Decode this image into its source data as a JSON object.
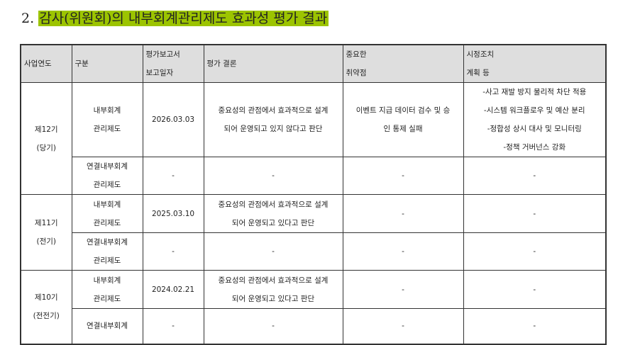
{
  "title": {
    "number": "2.",
    "text": "감사(위원회)의 내부회계관리제도 효과성 평가 결과",
    "highlight_color": "#9cc400"
  },
  "table": {
    "headers": [
      {
        "l1": "사업연도",
        "l2": ""
      },
      {
        "l1": "구분",
        "l2": ""
      },
      {
        "l1": "평가보고서",
        "l2": "보고일자"
      },
      {
        "l1": "평가 결론",
        "l2": ""
      },
      {
        "l1": "중요한",
        "l2": "취약점"
      },
      {
        "l1": "시정조치",
        "l2": "계획 등"
      }
    ],
    "groups": [
      {
        "year": "제12기",
        "period": "(당기)",
        "rows": [
          {
            "type1": "내부회계",
            "type2": "관리제도",
            "date": "2026.03.03",
            "concl1": "중요성의 관점에서 효과적으로 설계",
            "concl2": "되어 운영되고 있지 않다고 판단",
            "weak1": "이벤트 지급 데이터 검수 및 승",
            "weak2": "인 통제 실패",
            "fix": [
              "-사고 재발 방지 물리적 차단 적용",
              "-시스템 워크플로우 및 예산 분리",
              "-정합성 상시 대사 및 모니터링",
              "-정책 거버넌스 강화"
            ]
          },
          {
            "type1": "연결내부회계",
            "type2": "관리제도",
            "date": "-",
            "concl1": "-",
            "concl2": "",
            "weak1": "-",
            "weak2": "",
            "fix": [
              "-"
            ]
          }
        ]
      },
      {
        "year": "제11기",
        "period": "(전기)",
        "rows": [
          {
            "type1": "내부회계",
            "type2": "관리제도",
            "date": "2025.03.10",
            "concl1": "중요성의 관점에서 효과적으로 설계",
            "concl2": "되어 운영되고 있다고 판단",
            "weak1": "-",
            "weak2": "",
            "fix": [
              "-"
            ]
          },
          {
            "type1": "연결내부회계",
            "type2": "관리제도",
            "date": "-",
            "concl1": "-",
            "concl2": "",
            "weak1": "-",
            "weak2": "",
            "fix": [
              "-"
            ]
          }
        ]
      },
      {
        "year": "제10기",
        "period": "(전전기)",
        "rows": [
          {
            "type1": "내부회계",
            "type2": "관리제도",
            "date": "2024.02.21",
            "concl1": "중요성의 관점에서 효과적으로 설계",
            "concl2": "되어 운영되고 있다고 판단",
            "weak1": "-",
            "weak2": "",
            "fix": [
              "-"
            ]
          },
          {
            "type1": "연결내부회계",
            "type2": "",
            "date": "-",
            "concl1": "-",
            "concl2": "",
            "weak1": "-",
            "weak2": "",
            "fix": [
              "-"
            ]
          }
        ]
      }
    ]
  }
}
